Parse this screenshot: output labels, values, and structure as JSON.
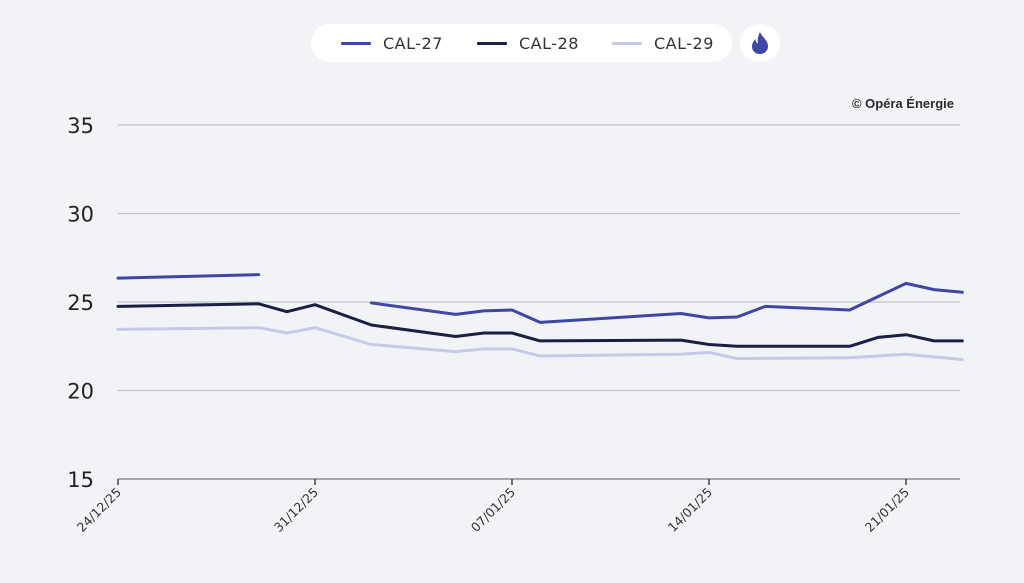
{
  "legend": {
    "items": [
      {
        "label": "CAL-27",
        "color": "#3f47a4"
      },
      {
        "label": "CAL-28",
        "color": "#1c1f44"
      },
      {
        "label": "CAL-29",
        "color": "#c8c9e8"
      }
    ],
    "energy_icon": "flame-icon",
    "energy_icon_color": "#3f47a4"
  },
  "copyright": "© Opéra Énergie",
  "chart_data": {
    "type": "line",
    "title": "",
    "xlabel": "",
    "ylabel": "",
    "ylim": [
      15,
      35
    ],
    "yticks": [
      15,
      20,
      25,
      30,
      35
    ],
    "grid": true,
    "legend_position": "top-center",
    "x_start_date": "24/12/25",
    "xlim_days": [
      0,
      30
    ],
    "xticks": [
      {
        "day": 0,
        "label": "24/12/25"
      },
      {
        "day": 7,
        "label": "31/12/25"
      },
      {
        "day": 14,
        "label": "07/01/25"
      },
      {
        "day": 21,
        "label": "14/01/25"
      },
      {
        "day": 28,
        "label": "21/01/25"
      }
    ],
    "series": [
      {
        "name": "CAL-27",
        "color": "#3f47a4",
        "segments": [
          [
            [
              0,
              26.35
            ],
            [
              5,
              26.55
            ]
          ],
          [
            [
              9,
              24.95
            ],
            [
              12,
              24.3
            ],
            [
              13,
              24.5
            ],
            [
              14,
              24.55
            ],
            [
              15,
              23.85
            ],
            [
              20,
              24.35
            ],
            [
              21,
              24.1
            ],
            [
              22,
              24.15
            ],
            [
              23,
              24.75
            ],
            [
              26,
              24.55
            ],
            [
              28,
              26.05
            ],
            [
              29,
              25.7
            ],
            [
              30,
              25.55
            ]
          ]
        ]
      },
      {
        "name": "CAL-28",
        "color": "#1c1f44",
        "segments": [
          [
            [
              0,
              24.75
            ],
            [
              5,
              24.9
            ],
            [
              6,
              24.45
            ],
            [
              7,
              24.85
            ],
            [
              9,
              23.7
            ],
            [
              12,
              23.05
            ],
            [
              13,
              23.25
            ],
            [
              14,
              23.25
            ],
            [
              15,
              22.8
            ],
            [
              20,
              22.85
            ],
            [
              21,
              22.6
            ],
            [
              22,
              22.5
            ],
            [
              26,
              22.5
            ],
            [
              27,
              23.0
            ],
            [
              28,
              23.15
            ],
            [
              29,
              22.8
            ],
            [
              30,
              22.8
            ]
          ]
        ]
      },
      {
        "name": "CAL-29",
        "color": "#c8c9e8",
        "segments": [
          [
            [
              0,
              23.45
            ],
            [
              5,
              23.55
            ],
            [
              6,
              23.25
            ],
            [
              7,
              23.55
            ],
            [
              9,
              22.6
            ],
            [
              12,
              22.2
            ],
            [
              13,
              22.35
            ],
            [
              14,
              22.35
            ],
            [
              15,
              21.95
            ],
            [
              20,
              22.05
            ],
            [
              21,
              22.15
            ],
            [
              22,
              21.8
            ],
            [
              26,
              21.85
            ],
            [
              28,
              22.05
            ],
            [
              30,
              21.75
            ]
          ]
        ]
      }
    ]
  }
}
